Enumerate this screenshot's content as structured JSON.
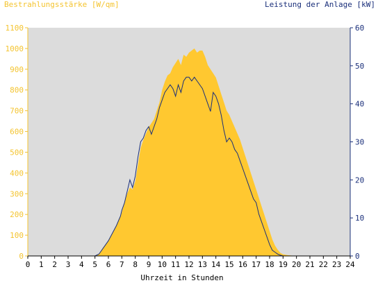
{
  "chart_data": {
    "type": "area",
    "left_axis_label": "Bestrahlungsstärke [W/qm]",
    "right_axis_label": "Leistung der Anlage [kW]",
    "xlabel": "Uhrzeit in Stunden",
    "x_ticks": [
      "0",
      "1",
      "2",
      "3",
      "4",
      "5",
      "6",
      "7",
      "8",
      "9",
      "10",
      "11",
      "12",
      "13",
      "14",
      "15",
      "16",
      "17",
      "18",
      "19",
      "20",
      "21",
      "22",
      "23",
      "24"
    ],
    "y_left_ticks": [
      "0",
      "100",
      "200",
      "300",
      "400",
      "500",
      "600",
      "700",
      "800",
      "900",
      "1000",
      "1100"
    ],
    "y_right_ticks": [
      "0",
      "10",
      "20",
      "30",
      "40",
      "50",
      "60"
    ],
    "x_range": [
      0,
      24
    ],
    "y_left_range": [
      0,
      1100
    ],
    "y_right_range": [
      0,
      60
    ],
    "grid": false,
    "colors": {
      "irradiance_fill": "#ffc830",
      "power_line": "#1a2f7a",
      "plot_background": "#dcdcdc",
      "left_axis": "#f4c430",
      "right_axis": "#1a2f7a"
    },
    "series": [
      {
        "name": "Bestrahlungsstärke [W/qm]",
        "axis": "left",
        "x": [
          0,
          5.0,
          5.3,
          5.6,
          6.0,
          6.3,
          6.6,
          6.9,
          7.0,
          7.2,
          7.4,
          7.6,
          7.8,
          8.0,
          8.2,
          8.4,
          8.6,
          8.8,
          9.0,
          9.2,
          9.4,
          9.6,
          9.8,
          10.0,
          10.2,
          10.4,
          10.6,
          10.8,
          11.0,
          11.2,
          11.4,
          11.6,
          11.8,
          12.0,
          12.2,
          12.4,
          12.6,
          12.8,
          13.0,
          13.2,
          13.4,
          13.6,
          13.8,
          14.0,
          14.2,
          14.4,
          14.6,
          14.8,
          15.0,
          15.2,
          15.4,
          15.6,
          15.8,
          16.0,
          16.2,
          16.4,
          16.6,
          16.8,
          17.0,
          17.2,
          17.4,
          17.6,
          17.8,
          18.0,
          18.2,
          18.4,
          18.6,
          18.8,
          19.0,
          19.3,
          19.6,
          20.0,
          24
        ],
        "y": [
          0,
          0,
          10,
          40,
          70,
          110,
          150,
          190,
          210,
          260,
          300,
          330,
          320,
          360,
          440,
          520,
          560,
          590,
          620,
          640,
          660,
          700,
          740,
          800,
          840,
          870,
          880,
          910,
          930,
          950,
          920,
          970,
          960,
          980,
          990,
          1000,
          980,
          990,
          990,
          960,
          920,
          900,
          880,
          860,
          820,
          780,
          740,
          700,
          680,
          650,
          620,
          590,
          560,
          520,
          480,
          440,
          400,
          360,
          320,
          280,
          240,
          200,
          160,
          120,
          80,
          50,
          30,
          15,
          8,
          4,
          2,
          0,
          0
        ]
      },
      {
        "name": "Leistung der Anlage [kW]",
        "axis": "right",
        "x": [
          0,
          5.0,
          5.3,
          5.6,
          6.0,
          6.3,
          6.6,
          6.9,
          7.0,
          7.2,
          7.4,
          7.6,
          7.8,
          8.0,
          8.2,
          8.4,
          8.6,
          8.8,
          9.0,
          9.2,
          9.4,
          9.6,
          9.8,
          10.0,
          10.2,
          10.4,
          10.6,
          10.8,
          11.0,
          11.2,
          11.4,
          11.6,
          11.8,
          12.0,
          12.2,
          12.4,
          12.6,
          12.8,
          13.0,
          13.2,
          13.4,
          13.6,
          13.8,
          14.0,
          14.2,
          14.4,
          14.6,
          14.8,
          15.0,
          15.2,
          15.4,
          15.6,
          15.8,
          16.0,
          16.2,
          16.4,
          16.6,
          16.8,
          17.0,
          17.2,
          17.4,
          17.6,
          17.8,
          18.0,
          18.2,
          18.4,
          18.6,
          18.8,
          19.0,
          19.3,
          19.6,
          20.0,
          24
        ],
        "y": [
          0,
          0,
          0.5,
          2,
          4,
          6,
          8,
          10.5,
          12,
          14,
          17,
          20,
          18,
          21,
          26,
          30,
          31,
          33,
          34,
          32,
          34,
          36,
          39,
          41,
          43,
          44,
          45,
          44,
          42,
          45,
          43,
          46,
          47,
          47,
          46,
          47,
          46,
          45,
          44,
          42,
          40,
          38,
          43,
          42,
          40,
          37,
          33,
          30,
          31,
          30,
          28,
          27,
          25,
          23,
          21,
          19,
          17,
          15,
          14,
          11,
          9,
          7,
          5,
          3,
          1.5,
          1,
          0.5,
          0.2,
          0,
          0,
          0,
          0,
          0
        ]
      }
    ]
  }
}
